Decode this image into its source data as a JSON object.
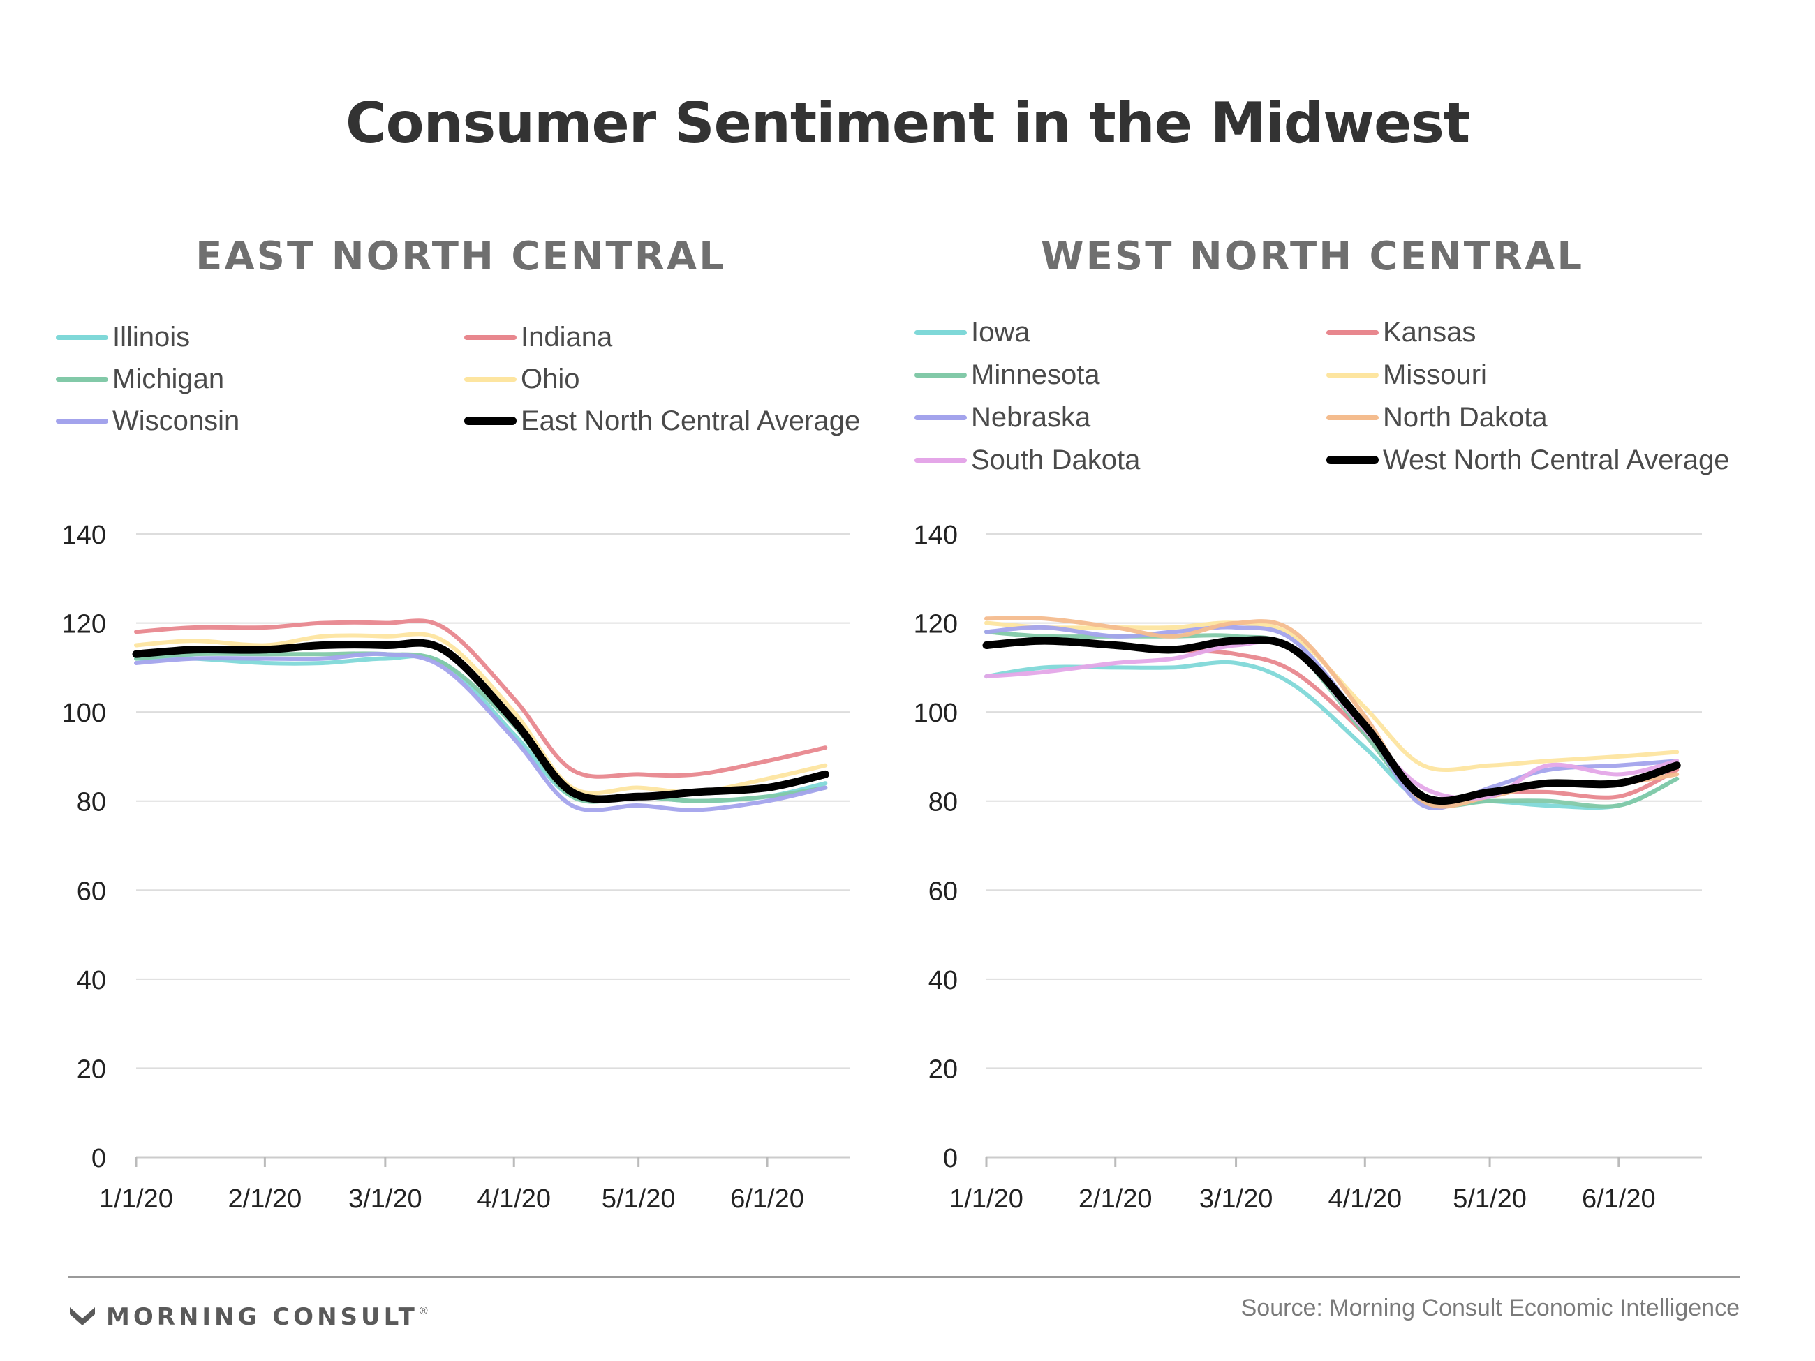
{
  "title": "Consumer Sentiment in the Midwest",
  "footer": {
    "logo_text": "MORNING CONSULT",
    "logo_mark": "registered",
    "source": "Source: Morning Consult Economic Intelligence"
  },
  "colors": {
    "cyan": "#7fd8d8",
    "red": "#e8878e",
    "green": "#82c9a8",
    "yellow": "#fde5a0",
    "blue": "#a3a3ec",
    "orange": "#f4bc8e",
    "pink": "#e4a6e8",
    "black": "#000000"
  },
  "chart_data": [
    {
      "type": "line",
      "title": "EAST NORTH CENTRAL",
      "x": [
        "1/1/20",
        "1/15/20",
        "2/1/20",
        "2/15/20",
        "3/1/20",
        "3/15/20",
        "4/1/20",
        "4/15/20",
        "5/1/20",
        "5/15/20",
        "6/1/20",
        "6/15/20"
      ],
      "x_ticks": [
        "1/1/20",
        "2/1/20",
        "3/1/20",
        "4/1/20",
        "5/1/20",
        "6/1/20"
      ],
      "ylim": [
        0,
        140
      ],
      "y_ticks": [
        0,
        20,
        40,
        60,
        80,
        100,
        120,
        140
      ],
      "grid": true,
      "legend_position": "top",
      "series": [
        {
          "name": "Illinois",
          "color": "#7fd8d8",
          "values": [
            112,
            112,
            111,
            111,
            112,
            111,
            95,
            81,
            81,
            80,
            81,
            84
          ]
        },
        {
          "name": "Indiana",
          "color": "#e8878e",
          "values": [
            118,
            119,
            119,
            120,
            120,
            119,
            103,
            87,
            86,
            86,
            89,
            92
          ]
        },
        {
          "name": "Michigan",
          "color": "#82c9a8",
          "values": [
            112,
            113,
            113,
            113,
            113,
            111,
            97,
            81,
            81,
            80,
            81,
            83
          ]
        },
        {
          "name": "Ohio",
          "color": "#fde5a0",
          "values": [
            115,
            116,
            115,
            117,
            117,
            116,
            100,
            83,
            83,
            82,
            85,
            88
          ]
        },
        {
          "name": "Wisconsin",
          "color": "#a3a3ec",
          "values": [
            111,
            112,
            112,
            112,
            113,
            110,
            94,
            79,
            79,
            78,
            80,
            83
          ]
        },
        {
          "name": "East North Central Average",
          "color": "#000000",
          "values": [
            113,
            114,
            114,
            115,
            115,
            114,
            98,
            82,
            81,
            82,
            83,
            86
          ]
        }
      ]
    },
    {
      "type": "line",
      "title": "WEST NORTH CENTRAL",
      "x": [
        "1/1/20",
        "1/15/20",
        "2/1/20",
        "2/15/20",
        "3/1/20",
        "3/15/20",
        "4/1/20",
        "4/15/20",
        "5/1/20",
        "5/15/20",
        "6/1/20",
        "6/15/20"
      ],
      "x_ticks": [
        "1/1/20",
        "2/1/20",
        "3/1/20",
        "4/1/20",
        "5/1/20",
        "6/1/20"
      ],
      "ylim": [
        0,
        140
      ],
      "y_ticks": [
        0,
        20,
        40,
        60,
        80,
        100,
        120,
        140
      ],
      "grid": true,
      "legend_position": "top",
      "series": [
        {
          "name": "Iowa",
          "color": "#7fd8d8",
          "values": [
            108,
            110,
            110,
            110,
            111,
            106,
            92,
            80,
            80,
            79,
            79,
            85
          ]
        },
        {
          "name": "Kansas",
          "color": "#e8878e",
          "values": [
            115,
            116,
            115,
            114,
            113,
            109,
            95,
            81,
            82,
            82,
            81,
            87
          ]
        },
        {
          "name": "Minnesota",
          "color": "#82c9a8",
          "values": [
            118,
            117,
            117,
            117,
            117,
            114,
            95,
            80,
            80,
            80,
            79,
            85
          ]
        },
        {
          "name": "Missouri",
          "color": "#fde5a0",
          "values": [
            120,
            119,
            119,
            119,
            120,
            117,
            101,
            88,
            88,
            89,
            90,
            91
          ]
        },
        {
          "name": "Nebraska",
          "color": "#a3a3ec",
          "values": [
            118,
            119,
            117,
            118,
            119,
            116,
            97,
            79,
            83,
            87,
            88,
            89
          ]
        },
        {
          "name": "North Dakota",
          "color": "#f4bc8e",
          "values": [
            121,
            121,
            119,
            117,
            120,
            118,
            99,
            80,
            81,
            84,
            84,
            86
          ]
        },
        {
          "name": "South Dakota",
          "color": "#e4a6e8",
          "values": [
            108,
            109,
            111,
            112,
            115,
            114,
            96,
            83,
            81,
            88,
            86,
            89
          ]
        },
        {
          "name": "West North Central Average",
          "color": "#000000",
          "values": [
            115,
            116,
            115,
            114,
            116,
            114,
            97,
            81,
            82,
            84,
            84,
            88
          ]
        }
      ]
    }
  ]
}
